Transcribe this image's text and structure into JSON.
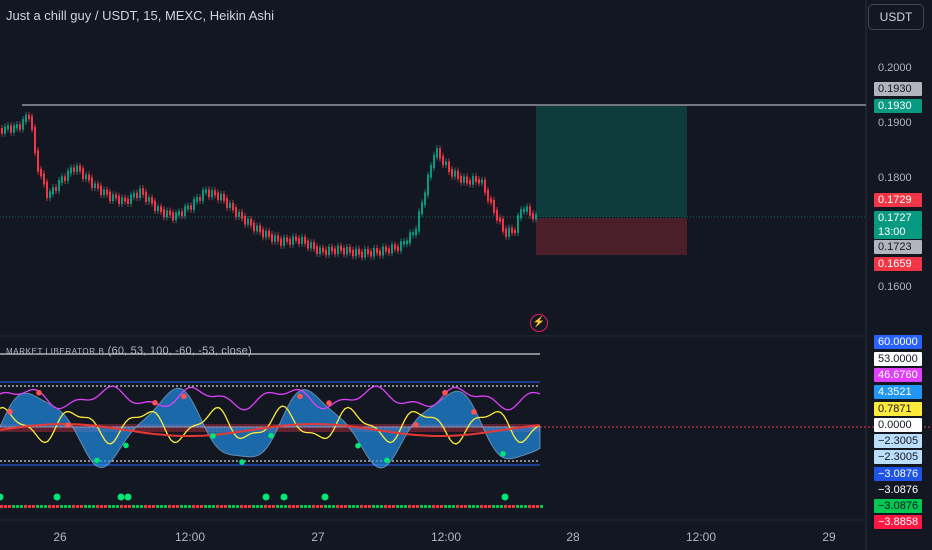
{
  "header": {
    "title": "Just a chill guy / USDT, 15, MEXC, Heikin Ashi",
    "currency": "USDT"
  },
  "price_axis": {
    "labels": [
      "0.2000",
      "0.1900",
      "0.1800",
      "0.1600"
    ],
    "tags": [
      {
        "text": "0.1930",
        "color": "#b2b5be",
        "text_color": "#131722"
      },
      {
        "text": "0.1930",
        "color": "#089981",
        "text_color": "#ffffff"
      },
      {
        "text": "0.1729",
        "color": "#f23645",
        "text_color": "#ffffff"
      },
      {
        "text": "0.1727",
        "color": "#089981",
        "text_color": "#ffffff"
      },
      {
        "text": "13:00",
        "color": "#089981",
        "text_color": "#ffffff"
      },
      {
        "text": "0.1723",
        "color": "#b2b5be",
        "text_color": "#131722"
      },
      {
        "text": "0.1659",
        "color": "#f23645",
        "text_color": "#ffffff"
      }
    ]
  },
  "indicator": {
    "title_prefix": "MARKET LIBERATOR B",
    "title_params": "(60, 53, 100, -60, -53, close)",
    "tags": [
      {
        "text": "60.0000",
        "color": "#2962ff",
        "text_color": "#ffffff"
      },
      {
        "text": "53.0000",
        "color": "#ffffff",
        "text_color": "#131722"
      },
      {
        "text": "46.6760",
        "color": "#e040fb",
        "text_color": "#ffffff"
      },
      {
        "text": "4.3521",
        "color": "#2196f3",
        "text_color": "#ffffff"
      },
      {
        "text": "0.7871",
        "color": "#ffeb3b",
        "text_color": "#131722"
      },
      {
        "text": "0.0000",
        "color": "#ffffff",
        "text_color": "#131722"
      },
      {
        "text": "−2.3005",
        "color": "#bbdefb",
        "text_color": "#131722"
      },
      {
        "text": "−2.3005",
        "color": "#bbdefb",
        "text_color": "#131722"
      },
      {
        "text": "−3.0876",
        "color": "#1e53e5",
        "text_color": "#ffffff"
      },
      {
        "text": "−3.0876",
        "color": "#131722",
        "text_color": "#ffffff"
      },
      {
        "text": "−3.0876",
        "color": "#00c853",
        "text_color": "#131722"
      },
      {
        "text": "−3.8858",
        "color": "#ff1744",
        "text_color": "#ffffff"
      }
    ]
  },
  "time_axis": {
    "labels": [
      "26",
      "12:00",
      "27",
      "12:00",
      "28",
      "12:00",
      "29"
    ]
  },
  "colors": {
    "up": "#089981",
    "down": "#f23645",
    "bg": "#131722"
  }
}
